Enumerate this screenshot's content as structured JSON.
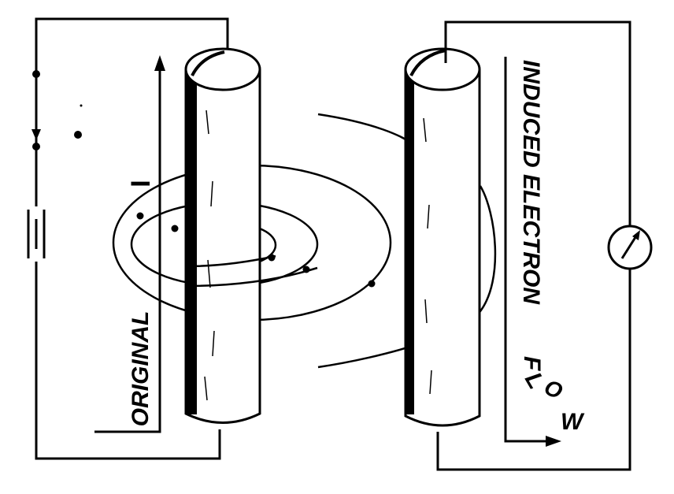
{
  "labels": {
    "original": "ORIGINAL",
    "current": "I",
    "induced": "INDUCED ELECTRON",
    "flow_f": "F",
    "flow_l": "L",
    "flow_o": "O",
    "flow_w": "W"
  },
  "colors": {
    "ink": "#000000",
    "paper": "#ffffff"
  },
  "icons": {
    "battery": "battery-icon",
    "meter": "galvanometer-icon"
  }
}
